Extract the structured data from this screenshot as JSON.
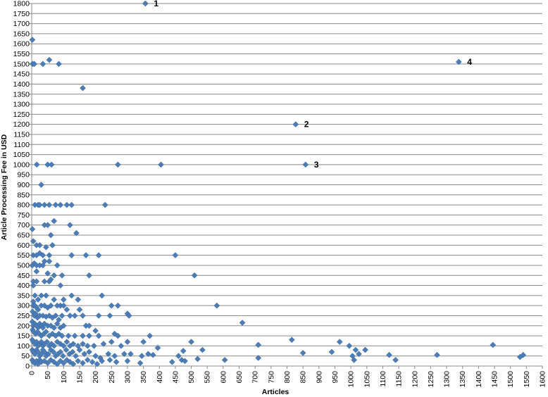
{
  "chart_data": {
    "type": "scatter",
    "xlabel": "Articles",
    "ylabel": "Article  Processing Fee in USD",
    "xlim": [
      0,
      1600
    ],
    "ylim": [
      0,
      1800
    ],
    "x_ticks": [
      0,
      50,
      100,
      150,
      200,
      250,
      300,
      350,
      400,
      450,
      500,
      550,
      600,
      650,
      700,
      750,
      800,
      850,
      900,
      950,
      1000,
      1050,
      1100,
      1150,
      1200,
      1250,
      1300,
      1350,
      1400,
      1450,
      1500,
      1550,
      1600
    ],
    "y_ticks": [
      0,
      50,
      100,
      150,
      200,
      250,
      300,
      350,
      400,
      450,
      500,
      550,
      600,
      650,
      700,
      750,
      800,
      850,
      900,
      950,
      1000,
      1050,
      1100,
      1150,
      1200,
      1250,
      1300,
      1350,
      1400,
      1450,
      1500,
      1550,
      1600,
      1650,
      1700,
      1750,
      1800
    ],
    "grid": "horizontal",
    "legend": "none",
    "marker_color": "#4a7ebb",
    "annotations": [
      {
        "text": "1",
        "x": 356,
        "y": 1800
      },
      {
        "text": "2",
        "x": 827,
        "y": 1200
      },
      {
        "text": "3",
        "x": 858,
        "y": 1000
      },
      {
        "text": "4",
        "x": 1338,
        "y": 1510
      }
    ],
    "points": [
      [
        356,
        1800
      ],
      [
        827,
        1200
      ],
      [
        858,
        1000
      ],
      [
        1338,
        1510
      ],
      [
        2,
        1620
      ],
      [
        3,
        1500
      ],
      [
        8,
        1500
      ],
      [
        35,
        1500
      ],
      [
        55,
        1520
      ],
      [
        85,
        1500
      ],
      [
        160,
        1380
      ],
      [
        16,
        1000
      ],
      [
        50,
        1000
      ],
      [
        62,
        1000
      ],
      [
        270,
        1000
      ],
      [
        405,
        1000
      ],
      [
        30,
        900
      ],
      [
        10,
        800
      ],
      [
        20,
        800
      ],
      [
        25,
        800
      ],
      [
        40,
        800
      ],
      [
        55,
        800
      ],
      [
        75,
        800
      ],
      [
        90,
        800
      ],
      [
        110,
        800
      ],
      [
        125,
        800
      ],
      [
        230,
        800
      ],
      [
        40,
        700
      ],
      [
        50,
        700
      ],
      [
        70,
        720
      ],
      [
        120,
        700
      ],
      [
        2,
        680
      ],
      [
        60,
        650
      ],
      [
        140,
        660
      ],
      [
        5,
        620
      ],
      [
        15,
        600
      ],
      [
        25,
        600
      ],
      [
        45,
        590
      ],
      [
        65,
        600
      ],
      [
        5,
        550
      ],
      [
        15,
        550
      ],
      [
        25,
        560
      ],
      [
        35,
        550
      ],
      [
        55,
        550
      ],
      [
        125,
        550
      ],
      [
        170,
        550
      ],
      [
        210,
        550
      ],
      [
        450,
        550
      ],
      [
        2,
        500
      ],
      [
        8,
        510
      ],
      [
        15,
        500
      ],
      [
        25,
        500
      ],
      [
        35,
        500
      ],
      [
        40,
        520
      ],
      [
        55,
        520
      ],
      [
        80,
        500
      ],
      [
        15,
        470
      ],
      [
        50,
        460
      ],
      [
        70,
        450
      ],
      [
        95,
        450
      ],
      [
        180,
        450
      ],
      [
        510,
        450
      ],
      [
        5,
        420
      ],
      [
        15,
        420
      ],
      [
        40,
        420
      ],
      [
        55,
        420
      ],
      [
        60,
        430
      ],
      [
        90,
        400
      ],
      [
        5,
        400
      ],
      [
        10,
        350
      ],
      [
        20,
        330
      ],
      [
        30,
        350
      ],
      [
        45,
        350
      ],
      [
        70,
        330
      ],
      [
        100,
        330
      ],
      [
        125,
        350
      ],
      [
        145,
        330
      ],
      [
        220,
        350
      ],
      [
        5,
        320
      ],
      [
        5,
        300
      ],
      [
        10,
        300
      ],
      [
        15,
        290
      ],
      [
        20,
        280
      ],
      [
        30,
        300
      ],
      [
        40,
        300
      ],
      [
        50,
        290
      ],
      [
        60,
        300
      ],
      [
        80,
        300
      ],
      [
        90,
        300
      ],
      [
        100,
        300
      ],
      [
        110,
        280
      ],
      [
        150,
        280
      ],
      [
        250,
        300
      ],
      [
        270,
        300
      ],
      [
        580,
        300
      ],
      [
        3,
        270
      ],
      [
        8,
        250
      ],
      [
        12,
        260
      ],
      [
        18,
        240
      ],
      [
        25,
        250
      ],
      [
        35,
        250
      ],
      [
        45,
        245
      ],
      [
        55,
        250
      ],
      [
        65,
        240
      ],
      [
        75,
        250
      ],
      [
        85,
        230
      ],
      [
        95,
        250
      ],
      [
        120,
        250
      ],
      [
        135,
        250
      ],
      [
        160,
        250
      ],
      [
        210,
        250
      ],
      [
        245,
        250
      ],
      [
        300,
        260
      ],
      [
        305,
        250
      ],
      [
        2,
        220
      ],
      [
        5,
        200
      ],
      [
        10,
        210
      ],
      [
        15,
        200
      ],
      [
        20,
        190
      ],
      [
        25,
        210
      ],
      [
        30,
        200
      ],
      [
        35,
        190
      ],
      [
        40,
        210
      ],
      [
        50,
        200
      ],
      [
        60,
        200
      ],
      [
        70,
        190
      ],
      [
        80,
        210
      ],
      [
        90,
        190
      ],
      [
        100,
        200
      ],
      [
        170,
        200
      ],
      [
        180,
        200
      ],
      [
        200,
        175
      ],
      [
        660,
        215
      ],
      [
        3,
        180
      ],
      [
        6,
        170
      ],
      [
        12,
        160
      ],
      [
        18,
        170
      ],
      [
        24,
        160
      ],
      [
        30,
        150
      ],
      [
        38,
        160
      ],
      [
        45,
        170
      ],
      [
        55,
        150
      ],
      [
        65,
        160
      ],
      [
        75,
        150
      ],
      [
        85,
        160
      ],
      [
        95,
        150
      ],
      [
        115,
        150
      ],
      [
        135,
        150
      ],
      [
        160,
        150
      ],
      [
        180,
        150
      ],
      [
        210,
        150
      ],
      [
        260,
        160
      ],
      [
        270,
        150
      ],
      [
        370,
        150
      ],
      [
        2,
        130
      ],
      [
        5,
        120
      ],
      [
        10,
        110
      ],
      [
        15,
        120
      ],
      [
        20,
        100
      ],
      [
        25,
        110
      ],
      [
        30,
        120
      ],
      [
        35,
        100
      ],
      [
        40,
        110
      ],
      [
        48,
        120
      ],
      [
        55,
        100
      ],
      [
        62,
        110
      ],
      [
        70,
        100
      ],
      [
        80,
        120
      ],
      [
        90,
        110
      ],
      [
        100,
        100
      ],
      [
        110,
        120
      ],
      [
        120,
        100
      ],
      [
        130,
        110
      ],
      [
        145,
        100
      ],
      [
        160,
        110
      ],
      [
        175,
        100
      ],
      [
        195,
        100
      ],
      [
        225,
        110
      ],
      [
        250,
        120
      ],
      [
        280,
        100
      ],
      [
        300,
        120
      ],
      [
        350,
        120
      ],
      [
        395,
        90
      ],
      [
        475,
        75
      ],
      [
        500,
        120
      ],
      [
        535,
        80
      ],
      [
        710,
        105
      ],
      [
        815,
        130
      ],
      [
        965,
        120
      ],
      [
        995,
        100
      ],
      [
        1015,
        80
      ],
      [
        1045,
        80
      ],
      [
        1445,
        105
      ],
      [
        2,
        80
      ],
      [
        5,
        70
      ],
      [
        10,
        60
      ],
      [
        15,
        80
      ],
      [
        20,
        70
      ],
      [
        25,
        50
      ],
      [
        30,
        60
      ],
      [
        35,
        80
      ],
      [
        40,
        70
      ],
      [
        45,
        50
      ],
      [
        52,
        60
      ],
      [
        60,
        80
      ],
      [
        68,
        70
      ],
      [
        75,
        50
      ],
      [
        82,
        60
      ],
      [
        90,
        70
      ],
      [
        98,
        50
      ],
      [
        108,
        80
      ],
      [
        118,
        60
      ],
      [
        128,
        70
      ],
      [
        138,
        50
      ],
      [
        150,
        80
      ],
      [
        165,
        60
      ],
      [
        180,
        70
      ],
      [
        200,
        50
      ],
      [
        215,
        40
      ],
      [
        240,
        60
      ],
      [
        260,
        50
      ],
      [
        290,
        60
      ],
      [
        310,
        60
      ],
      [
        345,
        50
      ],
      [
        365,
        60
      ],
      [
        380,
        55
      ],
      [
        460,
        50
      ],
      [
        470,
        30
      ],
      [
        520,
        35
      ],
      [
        605,
        30
      ],
      [
        710,
        40
      ],
      [
        850,
        65
      ],
      [
        940,
        70
      ],
      [
        1005,
        50
      ],
      [
        1025,
        60
      ],
      [
        1120,
        55
      ],
      [
        1140,
        30
      ],
      [
        1270,
        55
      ],
      [
        1530,
        45
      ],
      [
        1540,
        55
      ],
      [
        2,
        30
      ],
      [
        5,
        20
      ],
      [
        10,
        15
      ],
      [
        15,
        25
      ],
      [
        20,
        10
      ],
      [
        25,
        30
      ],
      [
        30,
        20
      ],
      [
        40,
        25
      ],
      [
        50,
        15
      ],
      [
        60,
        30
      ],
      [
        70,
        20
      ],
      [
        80,
        10
      ],
      [
        90,
        25
      ],
      [
        100,
        15
      ],
      [
        110,
        30
      ],
      [
        120,
        20
      ],
      [
        130,
        10
      ],
      [
        145,
        25
      ],
      [
        160,
        15
      ],
      [
        175,
        30
      ],
      [
        190,
        20
      ],
      [
        205,
        10
      ],
      [
        220,
        25
      ],
      [
        245,
        30
      ],
      [
        265,
        20
      ],
      [
        300,
        25
      ],
      [
        340,
        15
      ],
      [
        440,
        20
      ],
      [
        480,
        25
      ],
      [
        1010,
        30
      ]
    ]
  }
}
